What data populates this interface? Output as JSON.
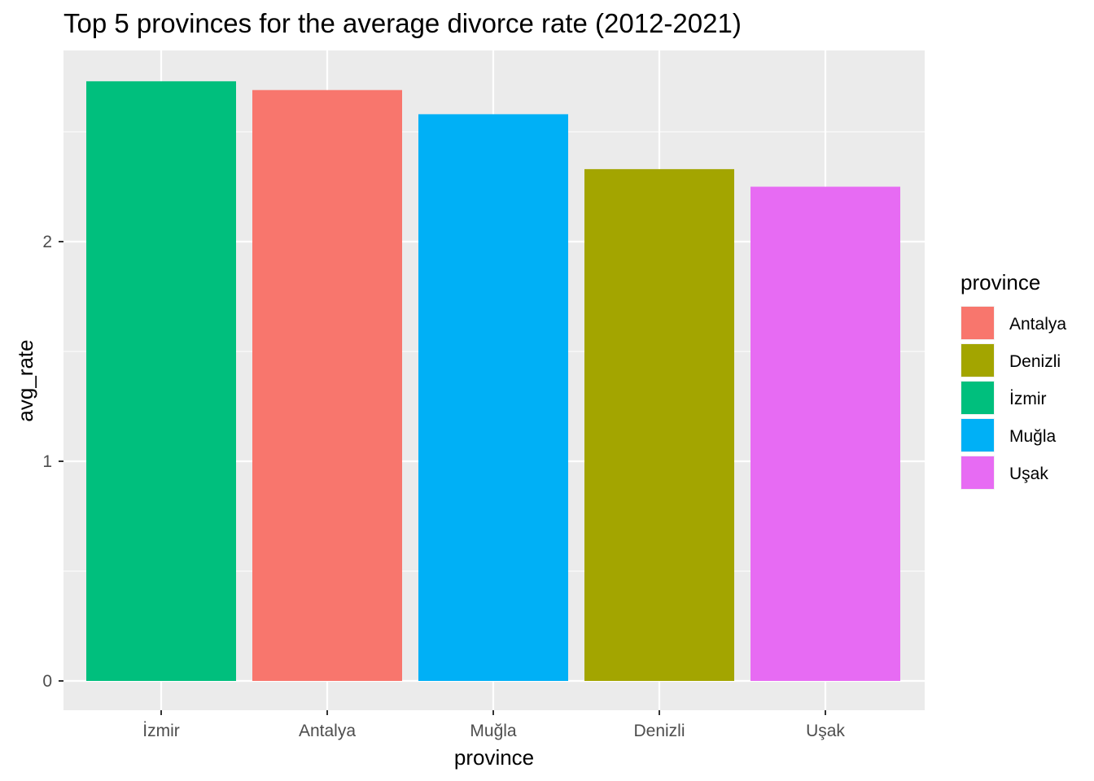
{
  "chart_data": {
    "type": "bar",
    "title": "Top 5 provinces for the average divorce rate (2012-2021)",
    "xlabel": "province",
    "ylabel": "avg_rate",
    "categories": [
      "İzmir",
      "Antalya",
      "Muğla",
      "Denizli",
      "Uşak"
    ],
    "values": [
      2.73,
      2.69,
      2.58,
      2.33,
      2.25
    ],
    "ylim": [
      0,
      2.85
    ],
    "yticks": [
      0,
      1,
      2
    ],
    "grid": true,
    "legend": {
      "title": "province",
      "placement": "right",
      "entries": [
        "Antalya",
        "Denizli",
        "İzmir",
        "Muğla",
        "Uşak"
      ]
    },
    "colors": {
      "Antalya": "#F8766D",
      "Denizli": "#A3A500",
      "İzmir": "#00BF7D",
      "Muğla": "#00B0F6",
      "Uşak": "#E76BF3"
    }
  }
}
